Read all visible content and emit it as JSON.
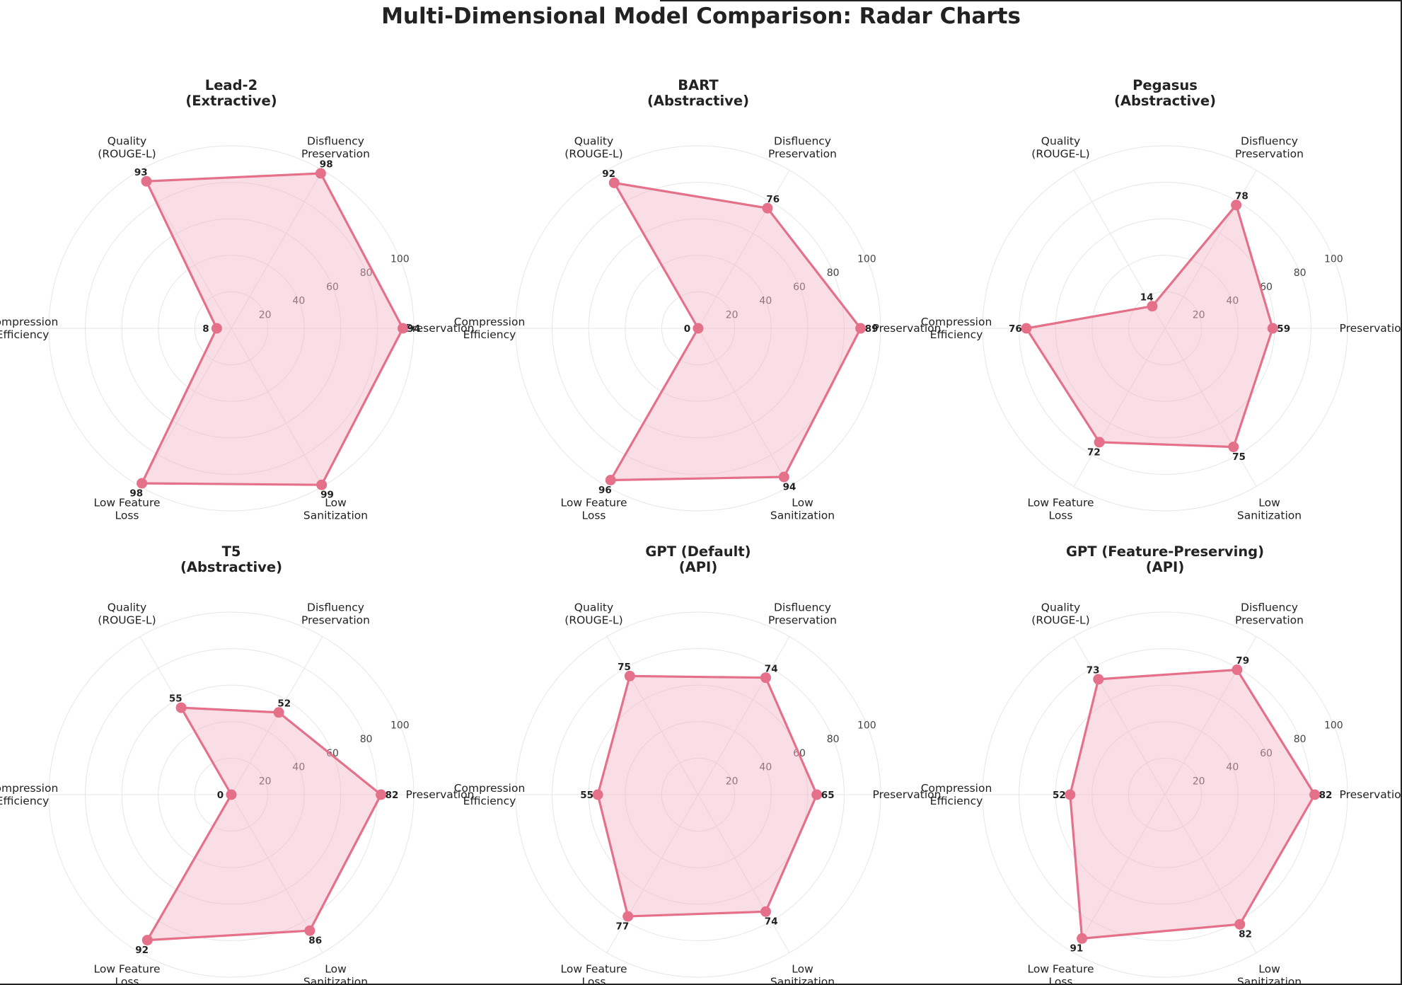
{
  "figure_title": "Multi-Dimensional Model Comparison: Radar Charts",
  "colors": {
    "series": "#e5708a",
    "fill": "#f1b6c5",
    "grid": "#e6e6e6",
    "text": "#222222"
  },
  "chart_data": [
    {
      "type": "radar",
      "title": "Lead-2\n(Extractive)",
      "axes": [
        "Preservation",
        "Disfluency\nPreservation",
        "Quality\n(ROUGE-L)",
        "Compression\nEfficiency",
        "Low Feature\nLoss",
        "Low\nSanitization"
      ],
      "values": [
        94,
        98,
        93,
        8,
        98,
        99
      ],
      "rlim": [
        0,
        100
      ],
      "rticks": [
        20,
        40,
        60,
        80,
        100
      ]
    },
    {
      "type": "radar",
      "title": "BART\n(Abstractive)",
      "axes": [
        "Preservation",
        "Disfluency\nPreservation",
        "Quality\n(ROUGE-L)",
        "Compression\nEfficiency",
        "Low Feature\nLoss",
        "Low\nSanitization"
      ],
      "values": [
        89,
        76,
        92,
        0,
        96,
        94
      ],
      "rlim": [
        0,
        100
      ],
      "rticks": [
        20,
        40,
        60,
        80,
        100
      ]
    },
    {
      "type": "radar",
      "title": "Pegasus\n(Abstractive)",
      "axes": [
        "Preservation",
        "Disfluency\nPreservation",
        "Quality\n(ROUGE-L)",
        "Compression\nEfficiency",
        "Low Feature\nLoss",
        "Low\nSanitization"
      ],
      "values": [
        59,
        78,
        14,
        76,
        72,
        75
      ],
      "rlim": [
        0,
        100
      ],
      "rticks": [
        20,
        40,
        60,
        80,
        100
      ]
    },
    {
      "type": "radar",
      "title": "T5\n(Abstractive)",
      "axes": [
        "Preservation",
        "Disfluency\nPreservation",
        "Quality\n(ROUGE-L)",
        "Compression\nEfficiency",
        "Low Feature\nLoss",
        "Low\nSanitization"
      ],
      "values": [
        82,
        52,
        55,
        0,
        92,
        86
      ],
      "rlim": [
        0,
        100
      ],
      "rticks": [
        20,
        40,
        60,
        80,
        100
      ]
    },
    {
      "type": "radar",
      "title": "GPT (Default)\n(API)",
      "axes": [
        "Preservation",
        "Disfluency\nPreservation",
        "Quality\n(ROUGE-L)",
        "Compression\nEfficiency",
        "Low Feature\nLoss",
        "Low\nSanitization"
      ],
      "values": [
        65,
        74,
        75,
        55,
        77,
        74
      ],
      "rlim": [
        0,
        100
      ],
      "rticks": [
        20,
        40,
        60,
        80,
        100
      ]
    },
    {
      "type": "radar",
      "title": "GPT (Feature-Preserving)\n(API)",
      "axes": [
        "Preservation",
        "Disfluency\nPreservation",
        "Quality\n(ROUGE-L)",
        "Compression\nEfficiency",
        "Low Feature\nLoss",
        "Low\nSanitization"
      ],
      "values": [
        82,
        79,
        73,
        52,
        91,
        82
      ],
      "rlim": [
        0,
        100
      ],
      "rticks": [
        20,
        40,
        60,
        80,
        100
      ]
    }
  ]
}
